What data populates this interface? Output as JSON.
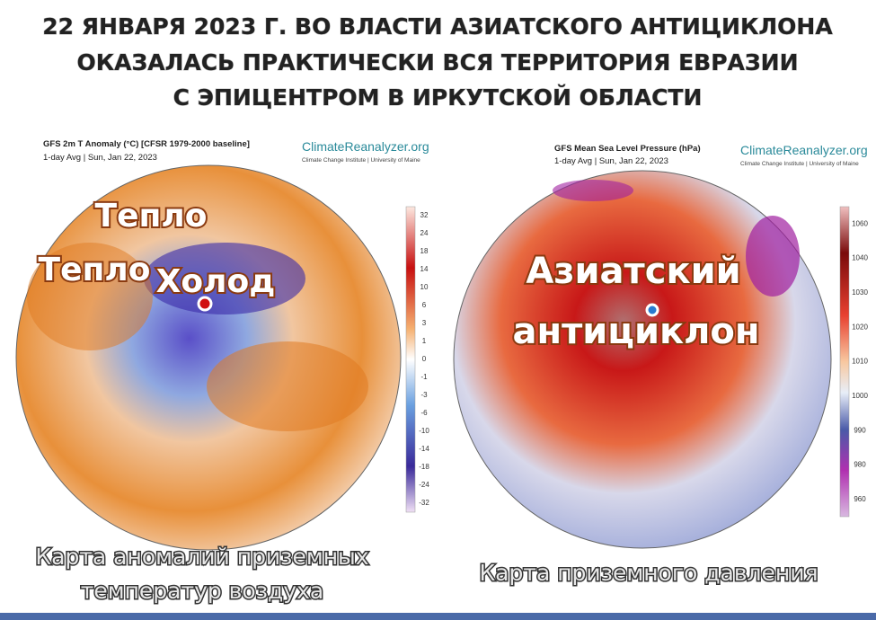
{
  "title": {
    "lines": [
      "22 ЯНВАРЯ 2023 Г. ВО ВЛАСТИ АЗИАТСКОГО АНТИЦИКЛОНА",
      "ОКАЗАЛАСЬ ПРАКТИЧЕСКИ ВСЯ ТЕРРИТОРИЯ ЕВРАЗИИ",
      "С ЭПИЦЕНТРОМ В ИРКУТСКОЙ ОБЛАСТИ"
    ]
  },
  "left_map": {
    "header": {
      "title": "GFS 2m T Anomaly (°C) [CFSR 1979-2000 baseline]",
      "subtitle": "1-day Avg | Sun, Jan 22, 2023"
    },
    "brand": {
      "name": "ClimateReanalyzer.org",
      "affiliation": "Climate Change Institute | University of Maine"
    },
    "labels": [
      "Тепло",
      "Тепло",
      "Холод"
    ],
    "colorbar": {
      "labels": [
        32,
        24,
        18,
        14,
        10,
        6,
        3,
        1,
        0,
        -1,
        -3,
        -6,
        -10,
        -14,
        -18,
        -24,
        -32
      ]
    },
    "caption": [
      "Карта аномалий приземных",
      "температур воздуха"
    ]
  },
  "right_map": {
    "header": {
      "title": "GFS Mean Sea Level Pressure (hPa)",
      "subtitle": "1-day Avg | Sun, Jan 22, 2023"
    },
    "brand": {
      "name": "ClimateReanalyzer.org",
      "affiliation": "Climate Change Institute | University of Maine"
    },
    "labels": [
      "Азиатский",
      "антициклон"
    ],
    "colorbar": {
      "labels": [
        1060,
        1040,
        1030,
        1020,
        1010,
        1000,
        990,
        980,
        960
      ]
    },
    "caption": [
      "Карта приземного давления"
    ]
  }
}
